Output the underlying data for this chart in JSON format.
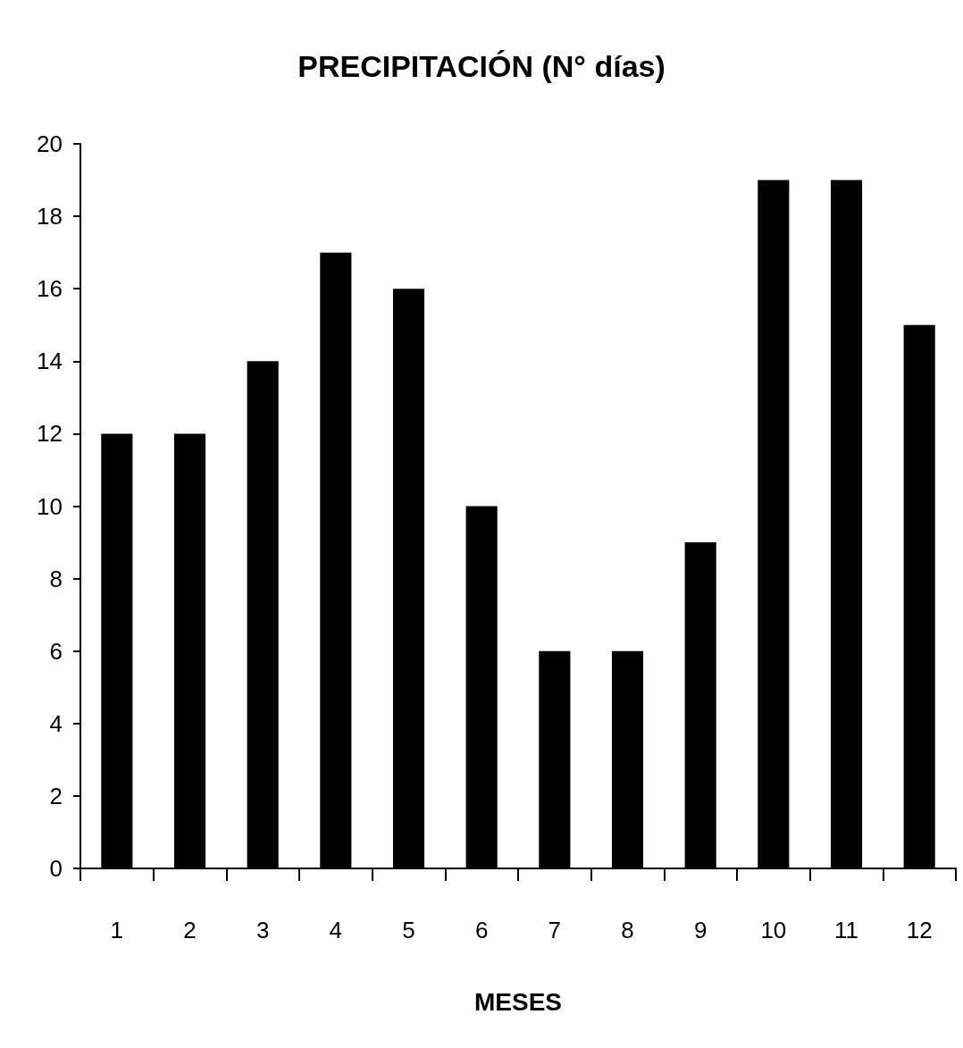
{
  "chart_data": {
    "type": "bar",
    "title": "PRECIPITACIÓN (N° días)",
    "xlabel": "MESES",
    "categories": [
      "1",
      "2",
      "3",
      "4",
      "5",
      "6",
      "7",
      "8",
      "9",
      "10",
      "11",
      "12"
    ],
    "values": [
      12,
      12,
      14,
      17,
      16,
      10,
      6,
      6,
      9,
      19,
      19,
      15
    ],
    "color": "#000000",
    "ylim": [
      0,
      20
    ],
    "yticks": [
      0,
      2,
      4,
      6,
      8,
      10,
      12,
      14,
      16,
      18,
      20
    ],
    "grid": false
  }
}
